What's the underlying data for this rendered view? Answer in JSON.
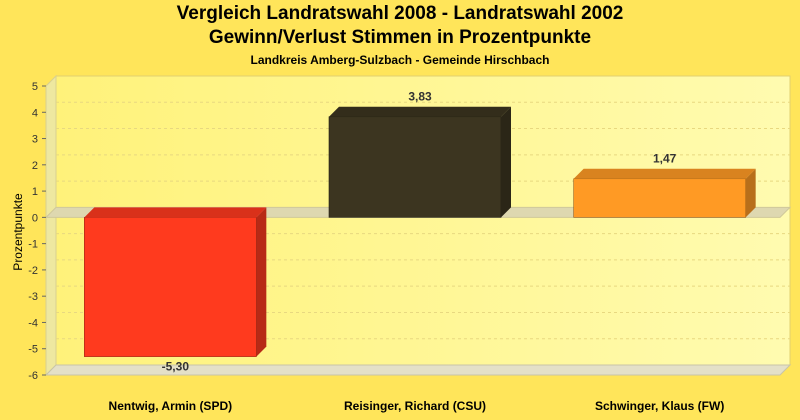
{
  "chart_data": {
    "type": "bar",
    "title": "Vergleich Landratswahl 2008 - Landratswahl 2002",
    "title2": "Gewinn/Verlust Stimmen in Prozentpunkte",
    "subtitle": "Landkreis Amberg-Sulzbach - Gemeinde Hirschbach",
    "ylabel": "Prozentpunkte",
    "xlabel": "",
    "ylim": [
      -6,
      5
    ],
    "yticks": [
      5,
      4,
      3,
      2,
      1,
      0,
      -1,
      -2,
      -3,
      -4,
      -5,
      -6
    ],
    "ytick_labels": [
      "5",
      "4",
      "3",
      "2",
      "1",
      "0",
      "-1",
      "-2",
      "-3",
      "-4",
      "-5",
      "-6"
    ],
    "categories": [
      "Nentwig, Armin (SPD)",
      "Reisinger, Richard (CSU)",
      "Schwinger, Klaus (FW)"
    ],
    "values": [
      -5.3,
      3.83,
      1.47
    ],
    "value_labels": [
      "-5,30",
      "3,83",
      "1,47"
    ],
    "colors": [
      "#ff3a1e",
      "#3c3520",
      "#ff9a24"
    ],
    "grid": true,
    "legend": "none"
  }
}
